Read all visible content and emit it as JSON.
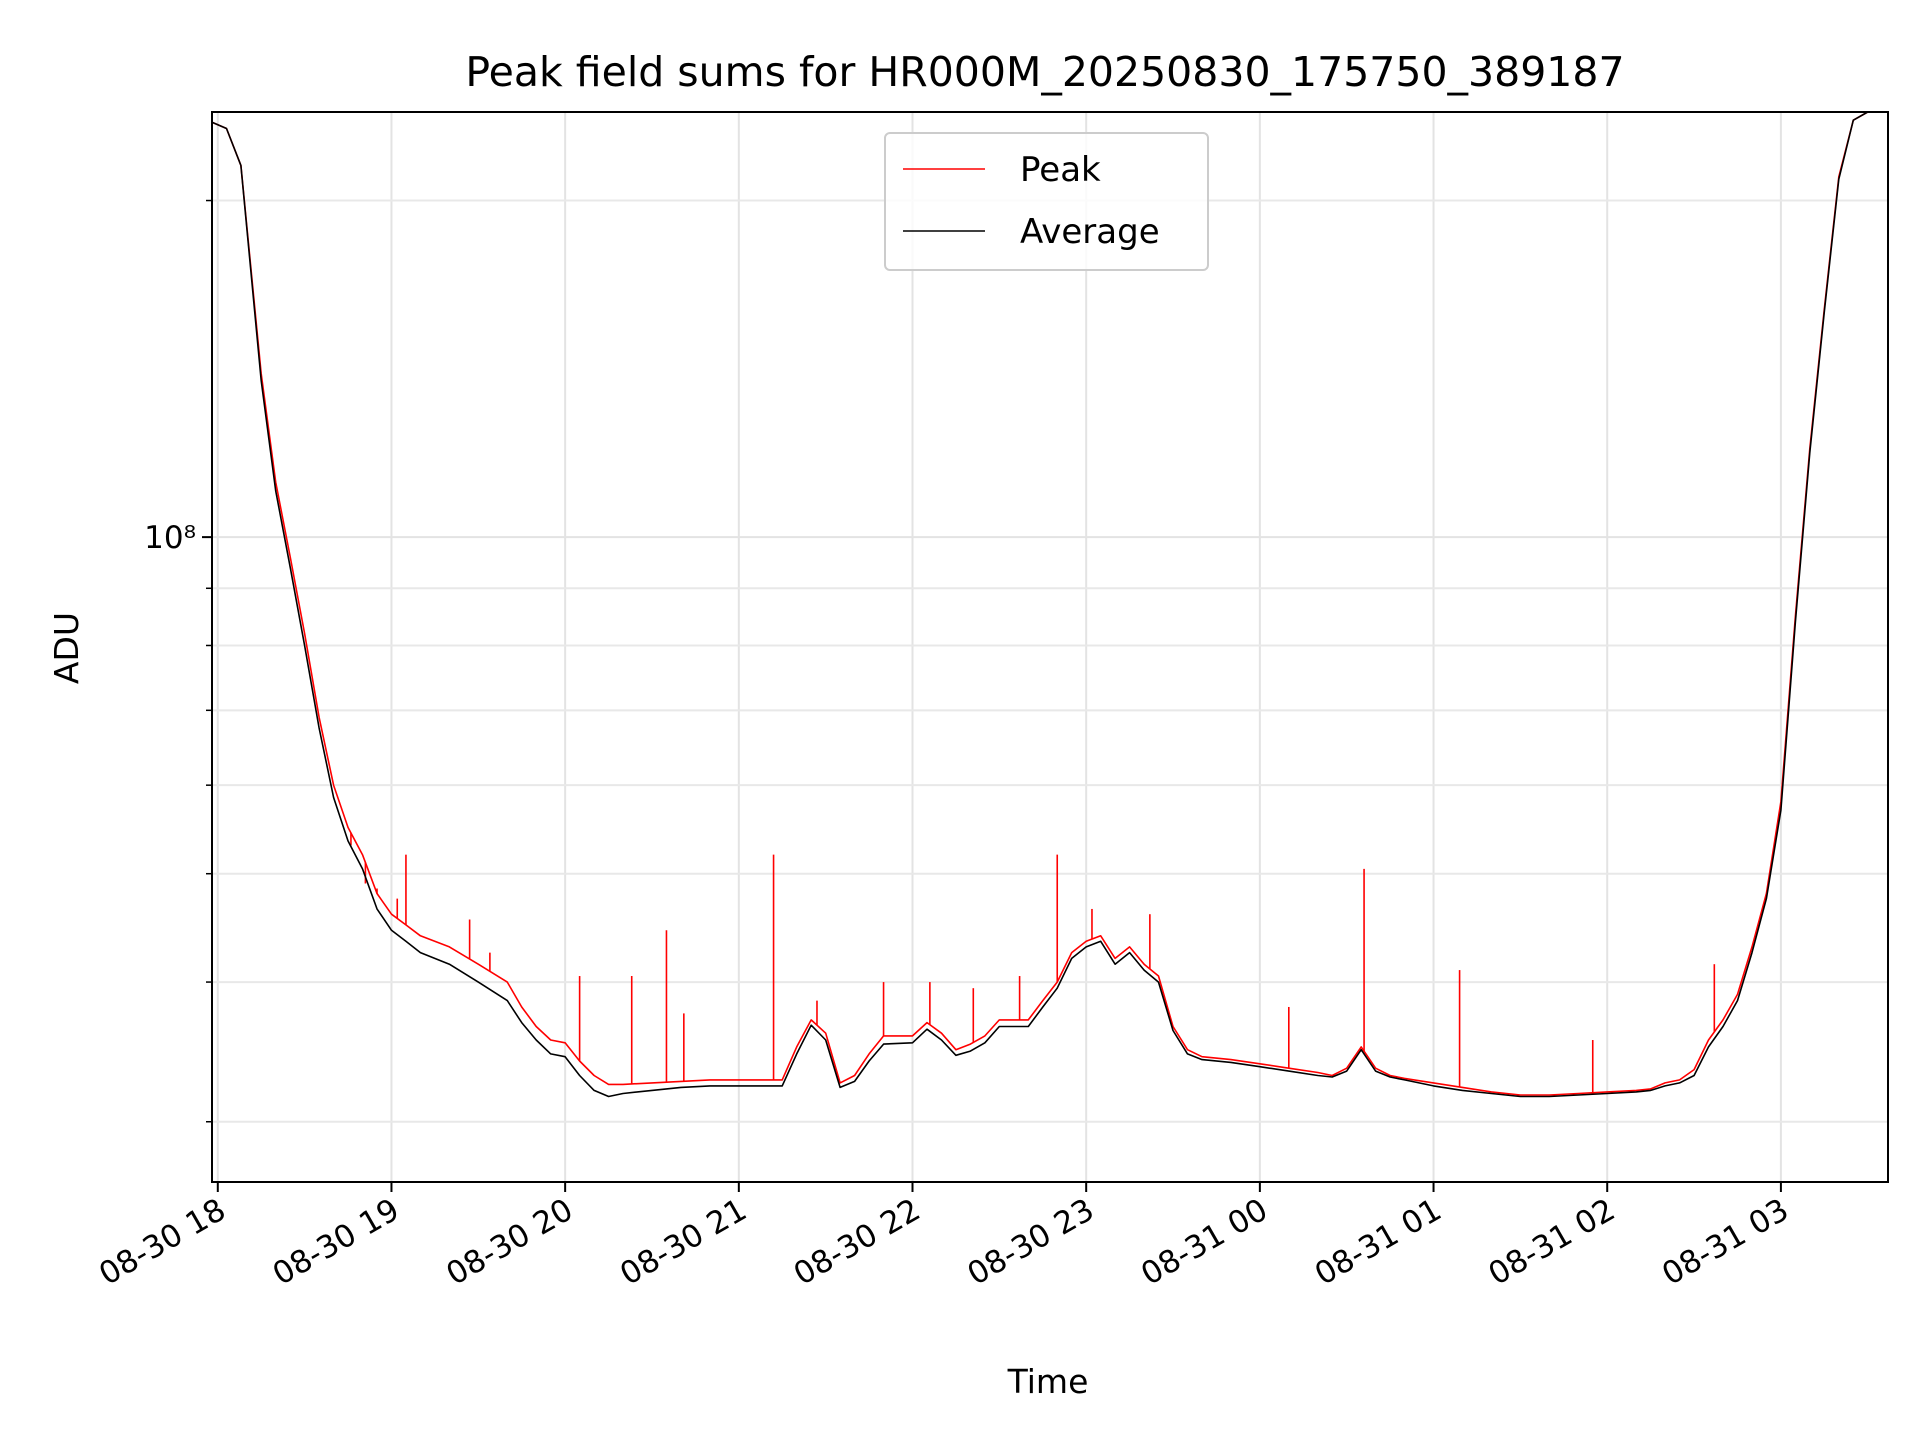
{
  "chart_data": {
    "type": "line",
    "title": "Peak field sums for HR000M_20250830_175750_389187",
    "xlabel": "Time",
    "ylabel": "ADU",
    "y_scale": "log",
    "y_tick_labels": [
      {
        "value": 100000000,
        "label": "10⁸"
      }
    ],
    "y_minor_ticks": [
      30000000,
      40000000,
      50000000,
      60000000,
      70000000,
      80000000,
      90000000,
      200000000
    ],
    "ylim": [
      26500000,
      240000000
    ],
    "xlim": [
      "2025-08-30 17:58",
      "2025-08-31 03:37"
    ],
    "x_tick_labels": [
      {
        "value": "2025-08-30 18:00",
        "label": "08-30 18"
      },
      {
        "value": "2025-08-30 19:00",
        "label": "08-30 19"
      },
      {
        "value": "2025-08-30 20:00",
        "label": "08-30 20"
      },
      {
        "value": "2025-08-30 21:00",
        "label": "08-30 21"
      },
      {
        "value": "2025-08-30 22:00",
        "label": "08-30 22"
      },
      {
        "value": "2025-08-30 23:00",
        "label": "08-30 23"
      },
      {
        "value": "2025-08-31 00:00",
        "label": "08-31 00"
      },
      {
        "value": "2025-08-31 01:00",
        "label": "08-31 01"
      },
      {
        "value": "2025-08-31 02:00",
        "label": "08-31 02"
      },
      {
        "value": "2025-08-31 03:00",
        "label": "08-31 03"
      }
    ],
    "grid": true,
    "legend_position": "top-center",
    "series": [
      {
        "name": "Peak",
        "color": "#ff0000",
        "points": [
          [
            "2025-08-30 17:58",
            235000000
          ],
          [
            "2025-08-30 18:03",
            232000000
          ],
          [
            "2025-08-30 18:08",
            215000000
          ],
          [
            "2025-08-30 18:15",
            140000000
          ],
          [
            "2025-08-30 18:20",
            112000000
          ],
          [
            "2025-08-30 18:25",
            96000000
          ],
          [
            "2025-08-30 18:30",
            82000000
          ],
          [
            "2025-08-30 18:35",
            69000000
          ],
          [
            "2025-08-30 18:40",
            60000000
          ],
          [
            "2025-08-30 18:45",
            55000000
          ],
          [
            "2025-08-30 18:50",
            52000000
          ],
          [
            "2025-08-30 18:55",
            48000000
          ],
          [
            "2025-08-30 19:00",
            46000000
          ],
          [
            "2025-08-30 19:05",
            45000000
          ],
          [
            "2025-08-30 19:10",
            44000000
          ],
          [
            "2025-08-30 19:20",
            43000000
          ],
          [
            "2025-08-30 19:30",
            41500000
          ],
          [
            "2025-08-30 19:40",
            40000000
          ],
          [
            "2025-08-30 19:45",
            38000000
          ],
          [
            "2025-08-30 19:50",
            36500000
          ],
          [
            "2025-08-30 19:55",
            35500000
          ],
          [
            "2025-08-30 20:00",
            35300000
          ],
          [
            "2025-08-30 20:05",
            34000000
          ],
          [
            "2025-08-30 20:10",
            33000000
          ],
          [
            "2025-08-30 20:15",
            32400000
          ],
          [
            "2025-08-30 20:20",
            32400000
          ],
          [
            "2025-08-30 20:30",
            32500000
          ],
          [
            "2025-08-30 20:40",
            32600000
          ],
          [
            "2025-08-30 20:50",
            32700000
          ],
          [
            "2025-08-30 21:00",
            32700000
          ],
          [
            "2025-08-30 21:10",
            32700000
          ],
          [
            "2025-08-30 21:15",
            32700000
          ],
          [
            "2025-08-30 21:20",
            35000000
          ],
          [
            "2025-08-30 21:25",
            37000000
          ],
          [
            "2025-08-30 21:30",
            36000000
          ],
          [
            "2025-08-30 21:35",
            32500000
          ],
          [
            "2025-08-30 21:40",
            33000000
          ],
          [
            "2025-08-30 21:45",
            34500000
          ],
          [
            "2025-08-30 21:50",
            35800000
          ],
          [
            "2025-08-30 22:00",
            35800000
          ],
          [
            "2025-08-30 22:05",
            36800000
          ],
          [
            "2025-08-30 22:10",
            36000000
          ],
          [
            "2025-08-30 22:15",
            34800000
          ],
          [
            "2025-08-30 22:20",
            35200000
          ],
          [
            "2025-08-30 22:25",
            35800000
          ],
          [
            "2025-08-30 22:30",
            37000000
          ],
          [
            "2025-08-30 22:40",
            37000000
          ],
          [
            "2025-08-30 22:45",
            38500000
          ],
          [
            "2025-08-30 22:50",
            40000000
          ],
          [
            "2025-08-30 22:55",
            42500000
          ],
          [
            "2025-08-30 23:00",
            43500000
          ],
          [
            "2025-08-30 23:05",
            44000000
          ],
          [
            "2025-08-30 23:10",
            42000000
          ],
          [
            "2025-08-30 23:15",
            43000000
          ],
          [
            "2025-08-30 23:20",
            41500000
          ],
          [
            "2025-08-30 23:25",
            40500000
          ],
          [
            "2025-08-30 23:30",
            36500000
          ],
          [
            "2025-08-30 23:35",
            34800000
          ],
          [
            "2025-08-30 23:40",
            34300000
          ],
          [
            "2025-08-30 23:50",
            34100000
          ],
          [
            "2025-08-31 00:00",
            33800000
          ],
          [
            "2025-08-31 00:10",
            33500000
          ],
          [
            "2025-08-31 00:20",
            33200000
          ],
          [
            "2025-08-31 00:25",
            33000000
          ],
          [
            "2025-08-31 00:30",
            33500000
          ],
          [
            "2025-08-31 00:35",
            35000000
          ],
          [
            "2025-08-31 00:40",
            33500000
          ],
          [
            "2025-08-31 00:45",
            33000000
          ],
          [
            "2025-08-31 00:50",
            32800000
          ],
          [
            "2025-08-31 01:00",
            32500000
          ],
          [
            "2025-08-31 01:10",
            32200000
          ],
          [
            "2025-08-31 01:20",
            31900000
          ],
          [
            "2025-08-31 01:30",
            31700000
          ],
          [
            "2025-08-31 01:40",
            31700000
          ],
          [
            "2025-08-31 01:50",
            31800000
          ],
          [
            "2025-08-31 02:00",
            31900000
          ],
          [
            "2025-08-31 02:10",
            32000000
          ],
          [
            "2025-08-31 02:15",
            32100000
          ],
          [
            "2025-08-31 02:20",
            32500000
          ],
          [
            "2025-08-31 02:25",
            32700000
          ],
          [
            "2025-08-31 02:30",
            33400000
          ],
          [
            "2025-08-31 02:35",
            35500000
          ],
          [
            "2025-08-31 02:40",
            37000000
          ],
          [
            "2025-08-31 02:45",
            39000000
          ],
          [
            "2025-08-31 02:50",
            43000000
          ],
          [
            "2025-08-31 02:55",
            48000000
          ],
          [
            "2025-08-31 03:00",
            58000000
          ],
          [
            "2025-08-31 03:05",
            85000000
          ],
          [
            "2025-08-31 03:10",
            120000000
          ],
          [
            "2025-08-31 03:15",
            160000000
          ],
          [
            "2025-08-31 03:20",
            210000000
          ],
          [
            "2025-08-31 03:25",
            236000000
          ],
          [
            "2025-08-31 03:30",
            240000000
          ],
          [
            "2025-08-31 03:37",
            240000000
          ]
        ],
        "spikes": [
          [
            "2025-08-30 18:46",
            53000000
          ],
          [
            "2025-08-30 18:51",
            49000000
          ],
          [
            "2025-08-30 18:55",
            48500000
          ],
          [
            "2025-08-30 19:02",
            47500000
          ],
          [
            "2025-08-30 19:05",
            52000000
          ],
          [
            "2025-08-30 19:27",
            45500000
          ],
          [
            "2025-08-30 19:34",
            42500000
          ],
          [
            "2025-08-30 20:05",
            40500000
          ],
          [
            "2025-08-30 20:23",
            40500000
          ],
          [
            "2025-08-30 20:35",
            44500000
          ],
          [
            "2025-08-30 20:41",
            37500000
          ],
          [
            "2025-08-30 21:12",
            52000000
          ],
          [
            "2025-08-30 21:27",
            38500000
          ],
          [
            "2025-08-30 21:50",
            40000000
          ],
          [
            "2025-08-30 22:06",
            40000000
          ],
          [
            "2025-08-30 22:21",
            39500000
          ],
          [
            "2025-08-30 22:37",
            40500000
          ],
          [
            "2025-08-30 22:50",
            52000000
          ],
          [
            "2025-08-30 23:02",
            46500000
          ],
          [
            "2025-08-30 23:22",
            46000000
          ],
          [
            "2025-08-31 00:10",
            38000000
          ],
          [
            "2025-08-31 00:36",
            50500000
          ],
          [
            "2025-08-31 01:09",
            41000000
          ],
          [
            "2025-08-31 01:55",
            35500000
          ],
          [
            "2025-08-31 02:37",
            41500000
          ]
        ]
      },
      {
        "name": "Average",
        "color": "#000000",
        "points": [
          [
            "2025-08-30 17:58",
            235000000
          ],
          [
            "2025-08-30 18:03",
            232000000
          ],
          [
            "2025-08-30 18:08",
            215000000
          ],
          [
            "2025-08-30 18:15",
            138000000
          ],
          [
            "2025-08-30 18:20",
            110000000
          ],
          [
            "2025-08-30 18:25",
            94000000
          ],
          [
            "2025-08-30 18:30",
            80000000
          ],
          [
            "2025-08-30 18:35",
            67500000
          ],
          [
            "2025-08-30 18:40",
            58500000
          ],
          [
            "2025-08-30 18:45",
            53500000
          ],
          [
            "2025-08-30 18:50",
            50500000
          ],
          [
            "2025-08-30 18:55",
            46500000
          ],
          [
            "2025-08-30 19:00",
            44500000
          ],
          [
            "2025-08-30 19:05",
            43500000
          ],
          [
            "2025-08-30 19:10",
            42500000
          ],
          [
            "2025-08-30 19:20",
            41500000
          ],
          [
            "2025-08-30 19:30",
            40000000
          ],
          [
            "2025-08-30 19:40",
            38500000
          ],
          [
            "2025-08-30 19:45",
            36800000
          ],
          [
            "2025-08-30 19:50",
            35500000
          ],
          [
            "2025-08-30 19:55",
            34500000
          ],
          [
            "2025-08-30 20:00",
            34300000
          ],
          [
            "2025-08-30 20:05",
            33000000
          ],
          [
            "2025-08-30 20:10",
            32000000
          ],
          [
            "2025-08-30 20:15",
            31600000
          ],
          [
            "2025-08-30 20:20",
            31800000
          ],
          [
            "2025-08-30 20:30",
            32000000
          ],
          [
            "2025-08-30 20:40",
            32200000
          ],
          [
            "2025-08-30 20:50",
            32300000
          ],
          [
            "2025-08-30 21:00",
            32300000
          ],
          [
            "2025-08-30 21:10",
            32300000
          ],
          [
            "2025-08-30 21:15",
            32300000
          ],
          [
            "2025-08-30 21:20",
            34500000
          ],
          [
            "2025-08-30 21:25",
            36600000
          ],
          [
            "2025-08-30 21:30",
            35500000
          ],
          [
            "2025-08-30 21:35",
            32200000
          ],
          [
            "2025-08-30 21:40",
            32600000
          ],
          [
            "2025-08-30 21:45",
            34000000
          ],
          [
            "2025-08-30 21:50",
            35200000
          ],
          [
            "2025-08-30 22:00",
            35300000
          ],
          [
            "2025-08-30 22:05",
            36300000
          ],
          [
            "2025-08-30 22:10",
            35500000
          ],
          [
            "2025-08-30 22:15",
            34400000
          ],
          [
            "2025-08-30 22:20",
            34700000
          ],
          [
            "2025-08-30 22:25",
            35300000
          ],
          [
            "2025-08-30 22:30",
            36500000
          ],
          [
            "2025-08-30 22:40",
            36500000
          ],
          [
            "2025-08-30 22:45",
            38000000
          ],
          [
            "2025-08-30 22:50",
            39500000
          ],
          [
            "2025-08-30 22:55",
            42000000
          ],
          [
            "2025-08-30 23:00",
            43000000
          ],
          [
            "2025-08-30 23:05",
            43500000
          ],
          [
            "2025-08-30 23:10",
            41500000
          ],
          [
            "2025-08-30 23:15",
            42500000
          ],
          [
            "2025-08-30 23:20",
            41000000
          ],
          [
            "2025-08-30 23:25",
            40000000
          ],
          [
            "2025-08-30 23:30",
            36200000
          ],
          [
            "2025-08-30 23:35",
            34500000
          ],
          [
            "2025-08-30 23:40",
            34100000
          ],
          [
            "2025-08-30 23:50",
            33900000
          ],
          [
            "2025-08-31 00:00",
            33600000
          ],
          [
            "2025-08-31 00:10",
            33300000
          ],
          [
            "2025-08-31 00:20",
            33000000
          ],
          [
            "2025-08-31 00:25",
            32900000
          ],
          [
            "2025-08-31 00:30",
            33300000
          ],
          [
            "2025-08-31 00:35",
            34800000
          ],
          [
            "2025-08-31 00:40",
            33300000
          ],
          [
            "2025-08-31 00:45",
            32900000
          ],
          [
            "2025-08-31 00:50",
            32700000
          ],
          [
            "2025-08-31 01:00",
            32300000
          ],
          [
            "2025-08-31 01:10",
            32000000
          ],
          [
            "2025-08-31 01:20",
            31800000
          ],
          [
            "2025-08-31 01:30",
            31600000
          ],
          [
            "2025-08-31 01:40",
            31600000
          ],
          [
            "2025-08-31 01:50",
            31700000
          ],
          [
            "2025-08-31 02:00",
            31800000
          ],
          [
            "2025-08-31 02:10",
            31900000
          ],
          [
            "2025-08-31 02:15",
            32000000
          ],
          [
            "2025-08-31 02:20",
            32300000
          ],
          [
            "2025-08-31 02:25",
            32500000
          ],
          [
            "2025-08-31 02:30",
            33000000
          ],
          [
            "2025-08-31 02:35",
            35000000
          ],
          [
            "2025-08-31 02:40",
            36500000
          ],
          [
            "2025-08-31 02:45",
            38500000
          ],
          [
            "2025-08-31 02:50",
            42500000
          ],
          [
            "2025-08-31 02:55",
            47500000
          ],
          [
            "2025-08-31 03:00",
            57000000
          ],
          [
            "2025-08-31 03:05",
            84000000
          ],
          [
            "2025-08-31 03:10",
            119000000
          ],
          [
            "2025-08-31 03:15",
            159000000
          ],
          [
            "2025-08-31 03:20",
            209000000
          ],
          [
            "2025-08-31 03:25",
            236000000
          ],
          [
            "2025-08-31 03:30",
            240000000
          ],
          [
            "2025-08-31 03:37",
            240000000
          ]
        ]
      }
    ]
  }
}
